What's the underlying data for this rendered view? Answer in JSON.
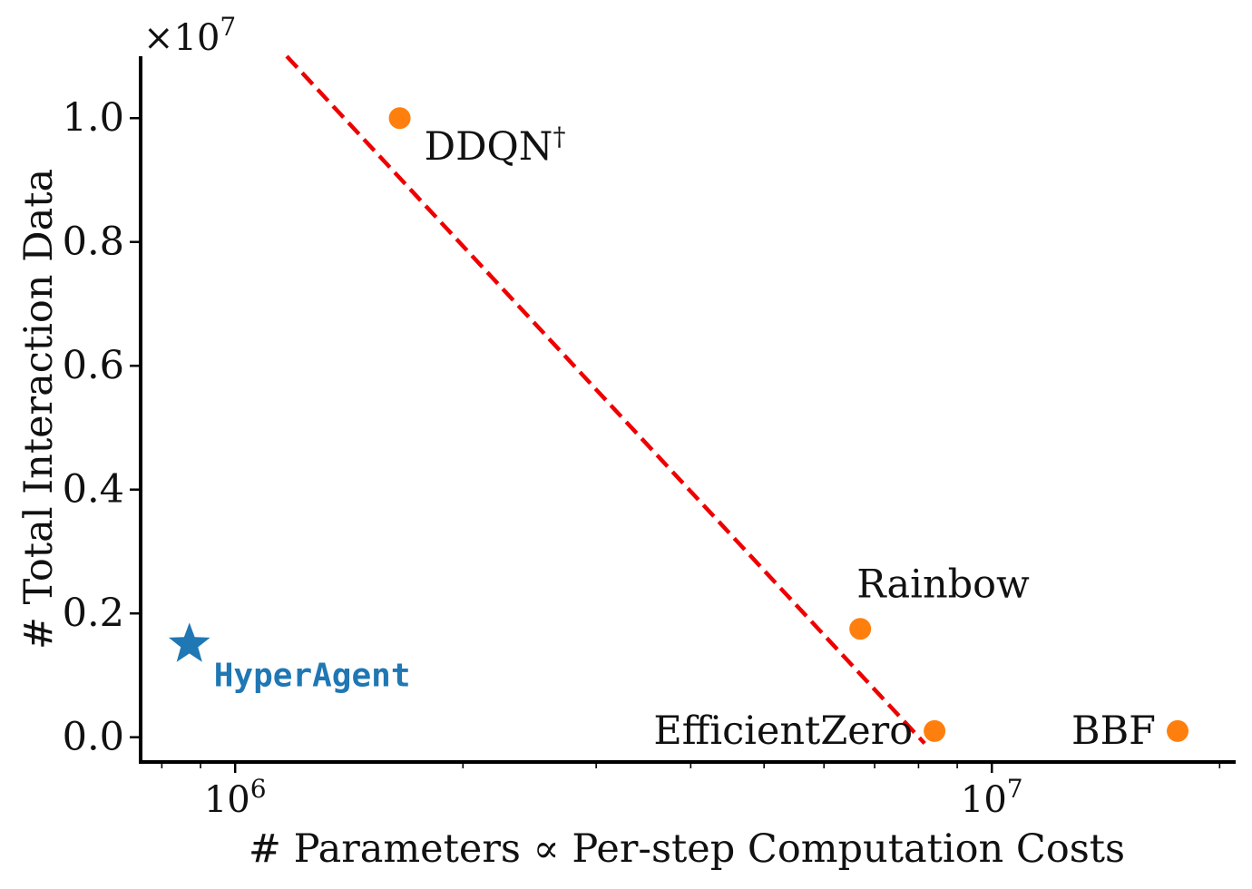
{
  "chart_data": {
    "type": "scatter",
    "xlabel": "# Parameters ∝ Per-step Computation Costs",
    "ylabel": "# Total Interaction Data",
    "x_scale": "log",
    "xlim": [
      750000,
      21000000
    ],
    "x_ticks": [
      {
        "value": 1000000,
        "base": "10",
        "exp": "6"
      },
      {
        "value": 10000000,
        "base": "10",
        "exp": "7"
      }
    ],
    "y_scale": "linear",
    "y_multiplier": {
      "prefix": "×10",
      "exp": "7"
    },
    "ylim": [
      -0.04,
      1.1
    ],
    "y_ticks": [
      {
        "value": 0.0,
        "label": "0.0"
      },
      {
        "value": 0.2,
        "label": "0.2"
      },
      {
        "value": 0.4,
        "label": "0.4"
      },
      {
        "value": 0.6,
        "label": "0.6"
      },
      {
        "value": 0.8,
        "label": "0.8"
      },
      {
        "value": 1.0,
        "label": "1.0"
      }
    ],
    "grid": false,
    "points": [
      {
        "label": "DDQN",
        "sup": "†",
        "x": 1650000,
        "y": 1.0,
        "marker": "circle",
        "color": "#ff7f0e",
        "label_pos": "below-right"
      },
      {
        "label": "Rainbow",
        "sup": "",
        "x": 6700000,
        "y": 0.175,
        "marker": "circle",
        "color": "#ff7f0e",
        "label_pos": "above"
      },
      {
        "label": "EfficientZero",
        "sup": "",
        "x": 8400000,
        "y": 0.01,
        "marker": "circle",
        "color": "#ff7f0e",
        "label_pos": "left"
      },
      {
        "label": "BBF",
        "sup": "",
        "x": 17600000,
        "y": 0.01,
        "marker": "circle",
        "color": "#ff7f0e",
        "label_pos": "left"
      },
      {
        "label": "HyperAgent",
        "sup": "",
        "x": 870000,
        "y": 0.15,
        "marker": "star",
        "color": "#1f77b4",
        "label_pos": "below-right",
        "monospace": true
      }
    ],
    "trend_line": {
      "style": "dashed",
      "color": "#ee0000",
      "x": [
        1170000,
        8150000
      ],
      "y": [
        1.1,
        -0.01
      ]
    }
  }
}
